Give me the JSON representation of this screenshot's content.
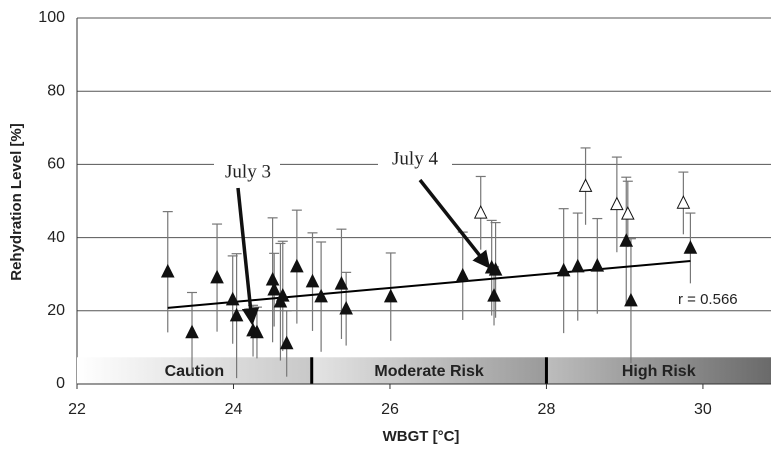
{
  "chart_data": {
    "type": "scatter",
    "x_label": "WBGT  [°C]",
    "y_label": "Rehydration Level [%]",
    "xlim": [
      22,
      30.87
    ],
    "ylim": [
      0,
      100
    ],
    "xticks": [
      22,
      24,
      26,
      28,
      30
    ],
    "yticks": [
      0,
      20,
      40,
      60,
      80,
      100
    ],
    "grid": true,
    "series": [
      {
        "marker": "filled",
        "color": "#111111",
        "x": [
          23.16,
          23.47,
          23.79,
          23.99,
          24.04,
          24.25,
          24.3,
          24.5,
          24.52,
          24.6,
          24.63,
          24.68,
          24.81,
          25.01,
          25.12,
          25.38,
          25.44,
          26.01,
          26.93,
          27.3,
          27.35,
          27.33,
          28.22,
          28.4,
          28.65,
          29.02,
          29.08,
          29.84
        ],
        "values": [
          30.6,
          14,
          29,
          23,
          18.6,
          14.5,
          14,
          28.4,
          25.7,
          22.4,
          24,
          11,
          32,
          27.9,
          23.8,
          27.3,
          20.5,
          23.8,
          29.5,
          31.7,
          31.1,
          24,
          30.9,
          32,
          32.2,
          39,
          22.7,
          37.1
        ],
        "errors": [
          16.5,
          11,
          14.7,
          12,
          17,
          7,
          7,
          17,
          10,
          16,
          15,
          9,
          15.5,
          13.4,
          15,
          15,
          10,
          12,
          12,
          13,
          13,
          8,
          17,
          14.7,
          13,
          17.5,
          17,
          9.6
        ]
      },
      {
        "marker": "open",
        "color": "#111111",
        "x": [
          27.16,
          28.5,
          28.9,
          29.04,
          29.75
        ],
        "values": [
          46.7,
          54,
          49,
          46.4,
          49.4
        ],
        "errors": [
          10,
          10.5,
          13,
          9,
          8.5
        ]
      }
    ],
    "trendline": {
      "x": [
        23.16,
        29.84
      ],
      "y": [
        20.8,
        33.6
      ],
      "label": "r = 0.566"
    },
    "bands": [
      {
        "label": "Caution",
        "start": 22,
        "end": 25,
        "colors": [
          "#ffffff",
          "#c8c8c8"
        ]
      },
      {
        "label": "Moderate Risk",
        "start": 25,
        "end": 28,
        "colors": [
          "#e4e4e4",
          "#9a9a9a"
        ]
      },
      {
        "label": "High Risk",
        "start": 28,
        "end": 30.87,
        "colors": [
          "#bdbdbd",
          "#6a6a6a"
        ]
      }
    ],
    "band_height": 7.3,
    "annotations": [
      "July 3",
      "July 4"
    ]
  }
}
